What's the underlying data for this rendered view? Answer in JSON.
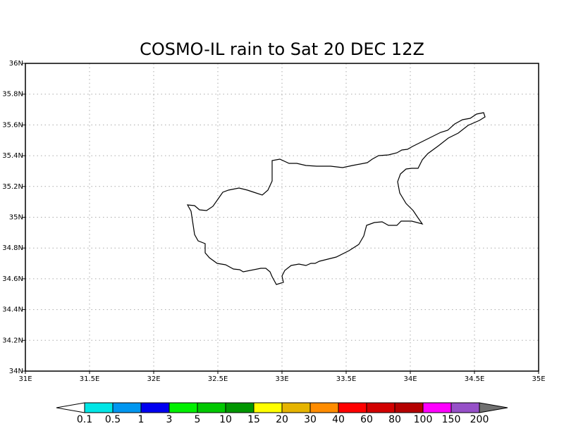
{
  "title": "COSMO-IL rain to Sat 20 DEC 12Z",
  "xlim": [
    31,
    35
  ],
  "xticks": [
    {
      "value": 31,
      "label": "31E"
    },
    {
      "value": 31.5,
      "label": "31.5E"
    },
    {
      "value": 32,
      "label": "32E"
    },
    {
      "value": 32.5,
      "label": "32.5E"
    },
    {
      "value": 33,
      "label": "33E"
    },
    {
      "value": 33.5,
      "label": "33.5E"
    },
    {
      "value": 34,
      "label": "34E"
    },
    {
      "value": 34.5,
      "label": "34.5E"
    },
    {
      "value": 35,
      "label": "35E"
    }
  ],
  "ylim": [
    34,
    36
  ],
  "yticks": [
    {
      "value": 34,
      "label": "34N"
    },
    {
      "value": 34.2,
      "label": "34.2N"
    },
    {
      "value": 34.4,
      "label": "34.4N"
    },
    {
      "value": 34.6,
      "label": "34.6N"
    },
    {
      "value": 34.8,
      "label": "34.8N"
    },
    {
      "value": 35,
      "label": "35N"
    },
    {
      "value": 35.2,
      "label": "35.2N"
    },
    {
      "value": 35.4,
      "label": "35.4N"
    },
    {
      "value": 35.6,
      "label": "35.6N"
    },
    {
      "value": 35.8,
      "label": "35.8N"
    },
    {
      "value": 36,
      "label": "36N"
    }
  ],
  "grid": true,
  "colorbar": {
    "levels": [
      0.1,
      0.5,
      1,
      3,
      5,
      10,
      15,
      20,
      30,
      40,
      60,
      80,
      100,
      150,
      200
    ],
    "colors": [
      "#00e6e6",
      "#0096f0",
      "#0000f0",
      "#00f000",
      "#00c800",
      "#009600",
      "#ffff00",
      "#e6b400",
      "#ff8c00",
      "#ff0000",
      "#d20000",
      "#b40000",
      "#ff00ff",
      "#9650c8"
    ],
    "under_color": "#ffffff",
    "over_color": "#707070"
  }
}
